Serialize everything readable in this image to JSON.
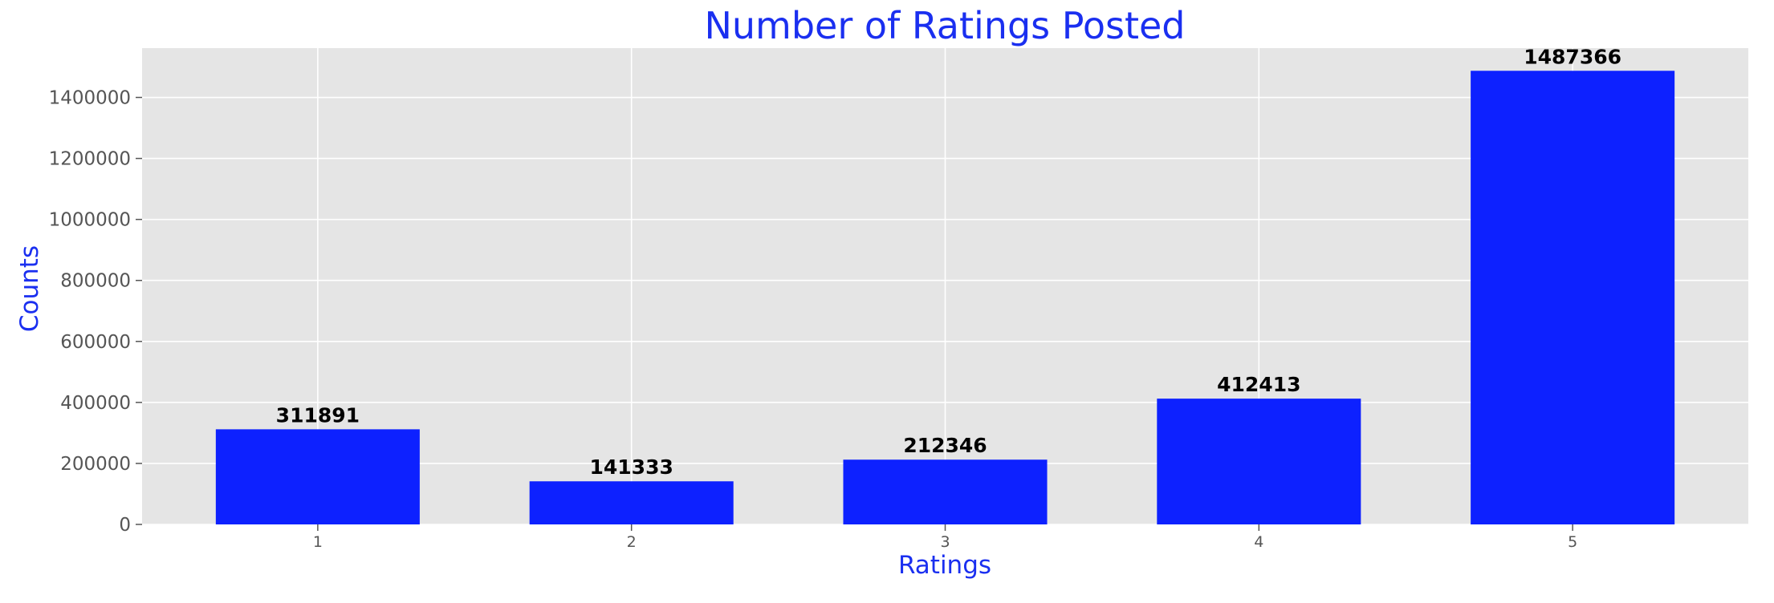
{
  "chart_data": {
    "type": "bar",
    "title": "Number of Ratings Posted",
    "xlabel": "Ratings",
    "ylabel": "Counts",
    "categories": [
      "1",
      "2",
      "3",
      "4",
      "5"
    ],
    "values": [
      311891,
      141333,
      212346,
      412413,
      1487366
    ],
    "data_labels": [
      "311891",
      "141333",
      "212346",
      "412413",
      "1487366"
    ],
    "yticks": [
      0,
      200000,
      400000,
      600000,
      800000,
      1000000,
      1200000,
      1400000
    ],
    "ytick_labels": [
      "0",
      "200000",
      "400000",
      "600000",
      "800000",
      "1000000",
      "1200000",
      "1400000"
    ],
    "ylim": [
      0,
      1561734
    ],
    "grid": true,
    "colors": {
      "bar": "#0d21ff",
      "title": "#1a2ff0",
      "axis_label": "#1a2ff0",
      "plot_background": "#e5e5e5",
      "grid": "#ffffff"
    }
  }
}
